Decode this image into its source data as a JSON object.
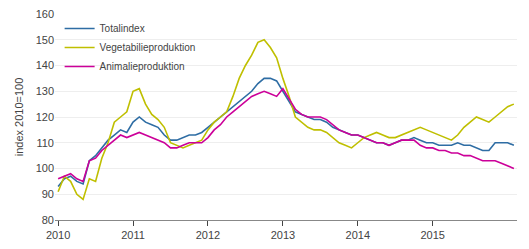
{
  "chart_data": {
    "type": "line",
    "ylabel": "index 2010=100",
    "categories": [
      "2010",
      null,
      null,
      null,
      null,
      null,
      null,
      null,
      null,
      null,
      null,
      null,
      "2011",
      null,
      null,
      null,
      null,
      null,
      null,
      null,
      null,
      null,
      null,
      null,
      "2012",
      null,
      null,
      null,
      null,
      null,
      null,
      null,
      null,
      null,
      null,
      null,
      "2013",
      null,
      null,
      null,
      null,
      null,
      null,
      null,
      null,
      null,
      null,
      null,
      "2014",
      null,
      null,
      null,
      null,
      null,
      null,
      null,
      null,
      null,
      null,
      null,
      "2015",
      null,
      null,
      null,
      null,
      null,
      null,
      null,
      null,
      null,
      null,
      null,
      null,
      null
    ],
    "series": [
      {
        "name": "Totalindex",
        "color": "#2e6da4",
        "values": [
          93,
          96,
          97,
          95,
          94,
          103,
          105,
          108,
          111,
          113,
          115,
          114,
          118,
          120,
          118,
          117,
          116,
          113,
          111,
          111,
          112,
          113,
          113,
          114,
          116,
          118,
          120,
          122,
          124,
          126,
          128,
          130,
          133,
          135,
          135,
          134,
          130,
          126,
          122,
          121,
          120,
          119,
          119,
          118,
          116,
          115,
          114,
          113,
          113,
          112,
          111,
          110,
          110,
          109,
          110,
          111,
          111,
          112,
          111,
          110,
          110,
          109,
          109,
          109,
          110,
          109,
          109,
          108,
          107,
          107,
          110,
          110,
          110,
          109
        ]
      },
      {
        "name": "Vegetabilieproduktion",
        "color": "#bfbf00",
        "values": [
          91,
          97,
          95,
          90,
          88,
          96,
          95,
          104,
          110,
          118,
          120,
          122,
          130,
          131,
          125,
          121,
          119,
          116,
          110,
          109,
          108,
          109,
          110,
          111,
          115,
          118,
          120,
          122,
          128,
          135,
          140,
          144,
          149,
          150,
          147,
          143,
          135,
          128,
          120,
          118,
          116,
          115,
          115,
          114,
          112,
          110,
          109,
          108,
          110,
          112,
          113,
          114,
          113,
          112,
          112,
          113,
          114,
          115,
          116,
          115,
          114,
          113,
          112,
          111,
          113,
          116,
          118,
          120,
          119,
          118,
          120,
          122,
          124,
          125
        ]
      },
      {
        "name": "Animalieproduktion",
        "color": "#cc0099",
        "values": [
          96,
          97,
          98,
          96,
          95,
          103,
          104,
          107,
          109,
          111,
          113,
          112,
          113,
          114,
          113,
          112,
          111,
          110,
          108,
          108,
          109,
          110,
          110,
          110,
          112,
          115,
          117,
          120,
          122,
          124,
          126,
          128,
          129,
          130,
          129,
          128,
          131,
          127,
          123,
          121,
          120,
          120,
          120,
          119,
          117,
          115,
          114,
          113,
          113,
          112,
          111,
          110,
          110,
          109,
          110,
          111,
          111,
          111,
          109,
          108,
          108,
          107,
          107,
          106,
          106,
          105,
          105,
          104,
          103,
          103,
          103,
          102,
          101,
          100
        ]
      }
    ],
    "ylim": [
      80,
      160
    ],
    "yticks": [
      80,
      90,
      100,
      110,
      120,
      130,
      140,
      150,
      160
    ],
    "grid": true,
    "legend": "upper left"
  }
}
